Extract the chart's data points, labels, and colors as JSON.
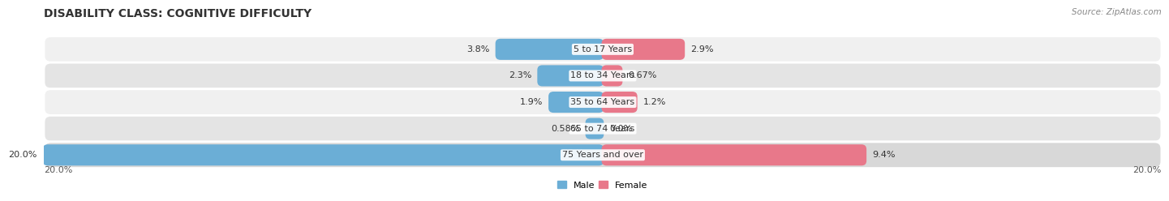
{
  "title": "DISABILITY CLASS: COGNITIVE DIFFICULTY",
  "source": "Source: ZipAtlas.com",
  "categories": [
    "5 to 17 Years",
    "18 to 34 Years",
    "35 to 64 Years",
    "65 to 74 Years",
    "75 Years and over"
  ],
  "male_values": [
    3.8,
    2.3,
    1.9,
    0.58,
    20.0
  ],
  "female_values": [
    2.9,
    0.67,
    1.2,
    0.0,
    9.4
  ],
  "male_labels": [
    "3.8%",
    "2.3%",
    "1.9%",
    "0.58%",
    "20.0%"
  ],
  "female_labels": [
    "2.9%",
    "0.67%",
    "1.2%",
    "0.0%",
    "9.4%"
  ],
  "axis_label_left": "20.0%",
  "axis_label_right": "20.0%",
  "max_val": 20.0,
  "male_color": "#6baed6",
  "female_color": "#e8788a",
  "row_bg_even": "#f0f0f0",
  "row_bg_odd": "#e4e4e4",
  "row_bg_last": "#d8d8d8",
  "title_fontsize": 10,
  "label_fontsize": 8,
  "tick_fontsize": 8,
  "source_fontsize": 7.5
}
